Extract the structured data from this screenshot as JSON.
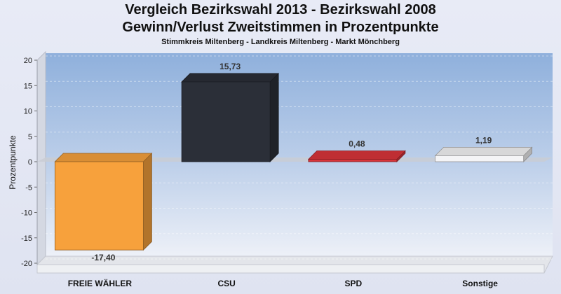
{
  "title_line1": "Vergleich Bezirkswahl 2013 - Bezirkswahl 2008",
  "title_line2": "Gewinn/Verlust Zweitstimmen in Prozentpunkte",
  "subtitle": "Stimmkreis Miltenberg - Landkreis Miltenberg - Markt Mönchberg",
  "chart_data": {
    "type": "bar",
    "title": "Vergleich Bezirkswahl 2013 - Bezirkswahl 2008 Gewinn/Verlust Zweitstimmen in Prozentpunkte",
    "subtitle": "Stimmkreis Miltenberg - Landkreis Miltenberg - Markt Mönchberg",
    "categories": [
      "FREIE WÄHLER",
      "CSU",
      "SPD",
      "Sonstige"
    ],
    "values": [
      -17.4,
      15.73,
      0.48,
      1.19
    ],
    "value_labels": [
      "-17,40",
      "15,73",
      "0,48",
      "1,19"
    ],
    "colors": [
      "#f7a13c",
      "#2b2f38",
      "#d9343a",
      "#f4f4f6"
    ],
    "xlabel": "",
    "ylabel": "Prozentpunkte",
    "ylim": [
      -20,
      20
    ],
    "yticks": [
      20,
      15,
      10,
      5,
      0,
      -5,
      -10,
      -15,
      -20
    ],
    "grid": true,
    "legend": "none"
  }
}
